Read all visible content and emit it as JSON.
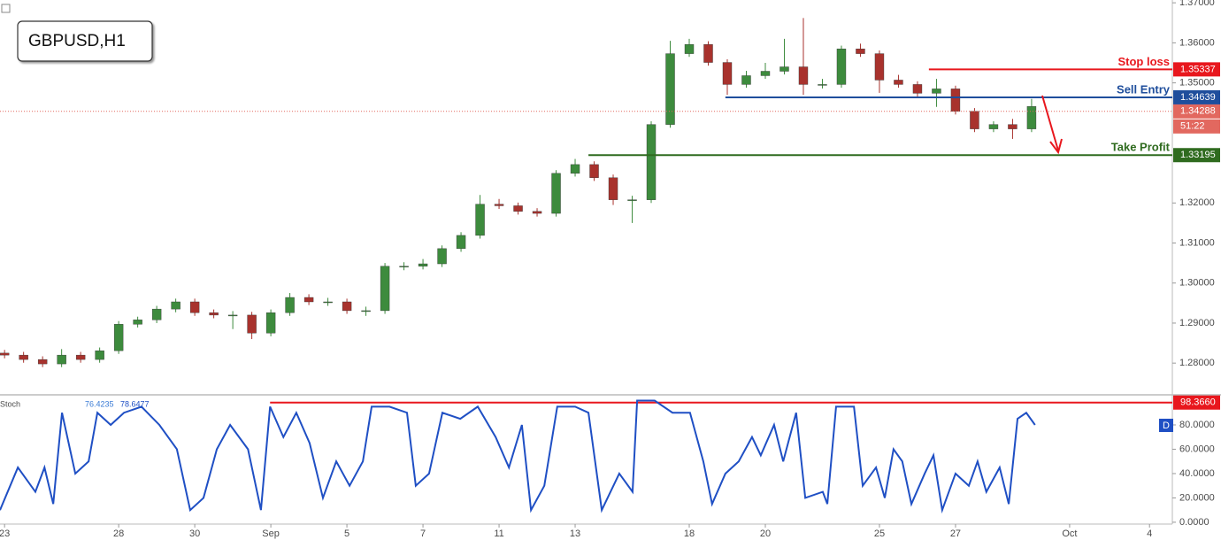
{
  "chart_data": [
    {
      "type": "candlestick",
      "title": "GBPUSD,H1",
      "up_color": "#3d8b3d",
      "down_color": "#a8322d",
      "x": [
        0,
        0.5,
        1,
        1.5,
        2,
        2.5,
        3,
        3.5,
        4,
        4.5,
        5,
        5.5,
        6,
        6.5,
        7,
        7.5,
        8,
        8.5,
        9,
        9.5,
        10,
        10.5,
        11,
        11.5,
        12,
        12.5,
        13,
        13.5,
        14,
        14.5,
        15,
        15.5,
        16,
        16.5,
        17,
        17.5,
        18,
        18.5,
        19,
        19.5,
        20,
        20.5,
        21,
        21.5,
        22,
        22.5,
        23,
        23.5,
        24,
        24.5,
        25,
        25.5,
        26,
        26.5,
        27
      ],
      "open": [
        1.2825,
        1.282,
        1.2809,
        1.2798,
        1.282,
        1.2809,
        1.2831,
        1.2897,
        1.2908,
        1.2935,
        1.2953,
        1.2926,
        1.292,
        1.292,
        1.2875,
        1.2926,
        1.2964,
        1.2953,
        1.2953,
        1.2931,
        1.2931,
        1.3042,
        1.3042,
        1.3048,
        1.3086,
        1.3119,
        1.3197,
        1.3193,
        1.3179,
        1.3174,
        1.3274,
        1.3296,
        1.3263,
        1.3208,
        1.3208,
        1.3396,
        1.3573,
        1.3596,
        1.3551,
        1.3496,
        1.3518,
        1.3529,
        1.354,
        1.3496,
        1.3496,
        1.3585,
        1.3573,
        1.3507,
        1.3496,
        1.3474,
        1.3485,
        1.3429,
        1.3385,
        1.3396,
        1.3385
      ],
      "high": [
        1.2833,
        1.2828,
        1.2817,
        1.2835,
        1.2828,
        1.2839,
        1.2905,
        1.2916,
        1.2943,
        1.2961,
        1.2961,
        1.2934,
        1.293,
        1.2928,
        1.2934,
        1.2975,
        1.2972,
        1.2963,
        1.2961,
        1.2941,
        1.305,
        1.3052,
        1.306,
        1.3094,
        1.3127,
        1.322,
        1.321,
        1.3201,
        1.3187,
        1.3282,
        1.331,
        1.3304,
        1.3271,
        1.3218,
        1.3404,
        1.3605,
        1.361,
        1.3604,
        1.3559,
        1.353,
        1.355,
        1.361,
        1.3662,
        1.351,
        1.3593,
        1.3598,
        1.3581,
        1.352,
        1.3504,
        1.351,
        1.3493,
        1.3437,
        1.3404,
        1.341,
        1.346
      ],
      "low": [
        1.2812,
        1.2801,
        1.279,
        1.279,
        1.2801,
        1.2801,
        1.2823,
        1.2889,
        1.29,
        1.2927,
        1.2918,
        1.2912,
        1.2885,
        1.286,
        1.2867,
        1.2918,
        1.2945,
        1.2943,
        1.2923,
        1.2918,
        1.2923,
        1.3032,
        1.3034,
        1.304,
        1.3078,
        1.3111,
        1.3185,
        1.3171,
        1.3166,
        1.3166,
        1.3266,
        1.3255,
        1.3195,
        1.315,
        1.32,
        1.3388,
        1.3565,
        1.3543,
        1.347,
        1.3488,
        1.351,
        1.3521,
        1.347,
        1.3486,
        1.3488,
        1.3565,
        1.3475,
        1.3488,
        1.3466,
        1.344,
        1.3421,
        1.3377,
        1.3377,
        1.336,
        1.3377
      ],
      "close": [
        1.282,
        1.2809,
        1.2798,
        1.282,
        1.2809,
        1.2831,
        1.2897,
        1.2908,
        1.2935,
        1.2953,
        1.2926,
        1.292,
        1.292,
        1.2875,
        1.2926,
        1.2964,
        1.2953,
        1.2953,
        1.2931,
        1.2931,
        1.3042,
        1.3042,
        1.3048,
        1.3086,
        1.3119,
        1.3197,
        1.3193,
        1.3179,
        1.3174,
        1.3274,
        1.3296,
        1.3263,
        1.3208,
        1.3208,
        1.3396,
        1.3573,
        1.3596,
        1.3551,
        1.3496,
        1.3518,
        1.3529,
        1.354,
        1.3496,
        1.3496,
        1.3585,
        1.3573,
        1.3507,
        1.3496,
        1.3474,
        1.3485,
        1.3429,
        1.3385,
        1.3396,
        1.3385,
        1.3441
      ],
      "xlim": [
        -0.12,
        30.7
      ],
      "ylim": [
        1.2723,
        1.3707
      ],
      "yticks": [
        {
          "value": 1.28,
          "label": "1.28000"
        },
        {
          "value": 1.29,
          "label": "1.29000"
        },
        {
          "value": 1.3,
          "label": "1.30000"
        },
        {
          "value": 1.31,
          "label": "1.31000"
        },
        {
          "value": 1.32,
          "label": "1.32000"
        },
        {
          "value": 1.35,
          "label": "1.35000"
        },
        {
          "value": 1.36,
          "label": "1.36000"
        },
        {
          "value": 1.37,
          "label": "1.37000"
        }
      ],
      "levels": [
        {
          "label": "Stop loss",
          "value": 1.35337,
          "from": 24.3,
          "color": "#e8171d"
        },
        {
          "label": "Sell Entry",
          "value": 1.34639,
          "from": 18.95,
          "color": "#1f4e9c"
        },
        {
          "label": "Take Profit",
          "value": 1.33195,
          "from": 15.35,
          "color": "#2f6b1f"
        }
      ],
      "current": {
        "value": 1.34288,
        "countdown": "51:22",
        "color": "#e2685f"
      }
    },
    {
      "type": "line",
      "legend_values": [
        76.4235,
        78.6477
      ],
      "badge": "D",
      "series": [
        {
          "name": "Stoch",
          "color": "#1f4fc4",
          "x": [
            -0.12,
            0.35,
            0.81,
            1.05,
            1.28,
            1.51,
            1.86,
            2.21,
            2.44,
            2.79,
            3.14,
            3.6,
            4.07,
            4.53,
            4.88,
            5.23,
            5.58,
            5.93,
            6.4,
            6.74,
            6.98,
            7.33,
            7.67,
            8.02,
            8.37,
            8.72,
            9.07,
            9.42,
            9.65,
            10.12,
            10.58,
            10.81,
            11.16,
            11.51,
            11.98,
            12.44,
            12.91,
            13.26,
            13.6,
            13.84,
            14.19,
            14.53,
            15,
            15.35,
            15.7,
            16.16,
            16.51,
            16.63,
            17.09,
            17.56,
            18.02,
            18.37,
            18.6,
            18.95,
            19.3,
            19.65,
            19.88,
            20.23,
            20.47,
            20.81,
            21.05,
            21.51,
            21.63,
            21.86,
            22.33,
            22.56,
            22.91,
            23.14,
            23.37,
            23.6,
            23.84,
            24.19,
            24.42,
            24.65,
            25,
            25.35,
            25.58,
            25.81,
            26.16,
            26.4,
            26.63,
            26.86,
            27.09
          ],
          "values": [
            10,
            45,
            25,
            45,
            15,
            90,
            40,
            50,
            90,
            80,
            90,
            95,
            80,
            60,
            10,
            20,
            60,
            80,
            60,
            10,
            95,
            70,
            90,
            65,
            20,
            50,
            30,
            50,
            95,
            95,
            90,
            30,
            40,
            90,
            85,
            95,
            70,
            45,
            80,
            10,
            30,
            95,
            95,
            90,
            10,
            40,
            25,
            100,
            100,
            90,
            90,
            50,
            15,
            40,
            50,
            70,
            55,
            80,
            50,
            90,
            20,
            25,
            15,
            95,
            95,
            30,
            45,
            20,
            60,
            50,
            15,
            40,
            55,
            10,
            40,
            30,
            50,
            25,
            45,
            15,
            85,
            90,
            80
          ]
        }
      ],
      "level": {
        "value": 98.366,
        "value_label": "98.3660",
        "from": 6.98,
        "color": "#e8171d"
      },
      "xlim": [
        -0.12,
        30.7
      ],
      "ylim": [
        -1.5,
        104
      ],
      "yticks": [
        {
          "value": 0,
          "label": "0.0000"
        },
        {
          "value": 20,
          "label": "20.0000"
        },
        {
          "value": 40,
          "label": "40.0000"
        },
        {
          "value": 60,
          "label": "60.0000"
        },
        {
          "value": 80,
          "label": "80.0000"
        }
      ],
      "xticks": [
        {
          "value": 0,
          "label": "23"
        },
        {
          "value": 3,
          "label": "28"
        },
        {
          "value": 5,
          "label": "30"
        },
        {
          "value": 7,
          "label": "Sep"
        },
        {
          "value": 9,
          "label": "5"
        },
        {
          "value": 11,
          "label": "7"
        },
        {
          "value": 13,
          "label": "11"
        },
        {
          "value": 15,
          "label": "13"
        },
        {
          "value": 18,
          "label": "18"
        },
        {
          "value": 20,
          "label": "20"
        },
        {
          "value": 23,
          "label": "25"
        },
        {
          "value": 25,
          "label": "27"
        },
        {
          "value": 28,
          "label": "Oct"
        },
        {
          "value": 30.1,
          "label": "4"
        }
      ]
    }
  ]
}
